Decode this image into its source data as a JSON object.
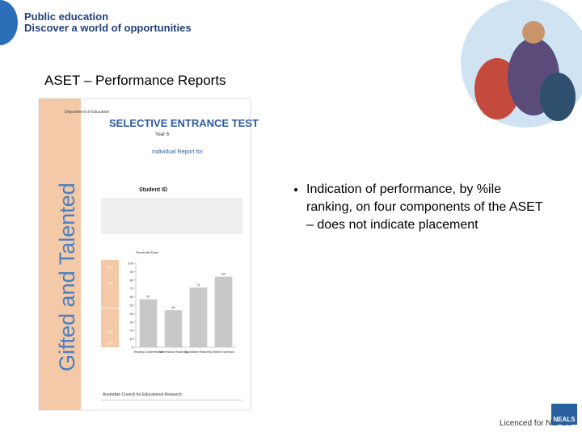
{
  "header": {
    "line1": "Public education",
    "line2": "Discover a world of opportunities"
  },
  "title": "ASET – Performance Reports",
  "report": {
    "side_text": "Gifted and Talented",
    "department": "Department of Education",
    "heading": "SELECTIVE ENTRANCE TEST",
    "year": "Year 6",
    "subheading": "Individual Report for",
    "student": "Student ID",
    "axis_title": "Percentile Rank",
    "bands": [
      "10%",
      "15%",
      "Middle 50% of students",
      "15%",
      "10%"
    ],
    "chart": {
      "type": "bar",
      "categories": [
        "Reading Comprehension",
        "Mathematical Reasoning",
        "Quantitative Reasoning",
        "Written Expression"
      ],
      "values": [
        57,
        44,
        71,
        84
      ],
      "color": "#c8c8c8",
      "ylim": [
        0,
        100
      ],
      "yticks": [
        0,
        10,
        20,
        30,
        40,
        50,
        60,
        70,
        80,
        90,
        100
      ]
    },
    "footer": "Australian Council for Educational Research"
  },
  "bullets": [
    "Indication of performance, by %ile ranking, on four components of the ASET – does not indicate placement"
  ],
  "licence": "Licenced for NEALS",
  "logo": "NEALS"
}
